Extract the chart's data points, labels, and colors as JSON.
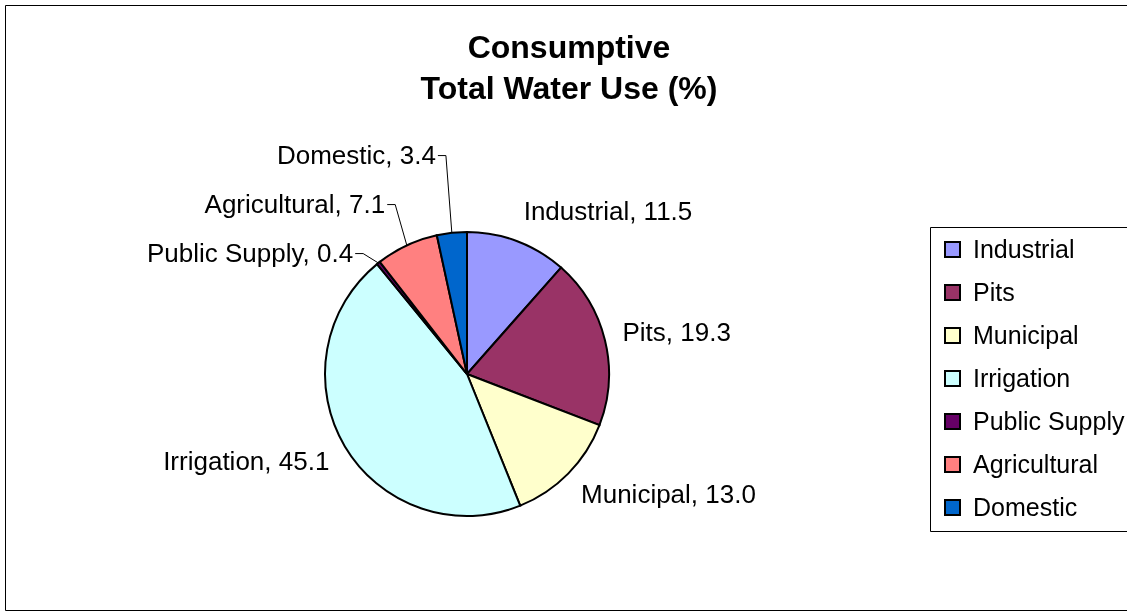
{
  "chart_data": {
    "type": "pie",
    "title": "Consumptive\nTotal Water Use (%)",
    "categories": [
      "Industrial",
      "Pits",
      "Municipal",
      "Irrigation",
      "Public Supply",
      "Agricultural",
      "Domestic"
    ],
    "values": [
      11.5,
      19.3,
      13.0,
      45.1,
      0.4,
      7.1,
      3.4
    ],
    "colors": [
      "#9999ff",
      "#993366",
      "#ffffcc",
      "#ccffff",
      "#660066",
      "#ff8080",
      "#0066cc"
    ],
    "value_labels": [
      "Industrial, 11.5",
      "Pits, 19.3",
      "Municipal, 13.0",
      "Irrigation, 45.1",
      "Public Supply, 0.4",
      "Agricultural, 7.1",
      "Domestic, 3.4"
    ],
    "legend": "right"
  }
}
